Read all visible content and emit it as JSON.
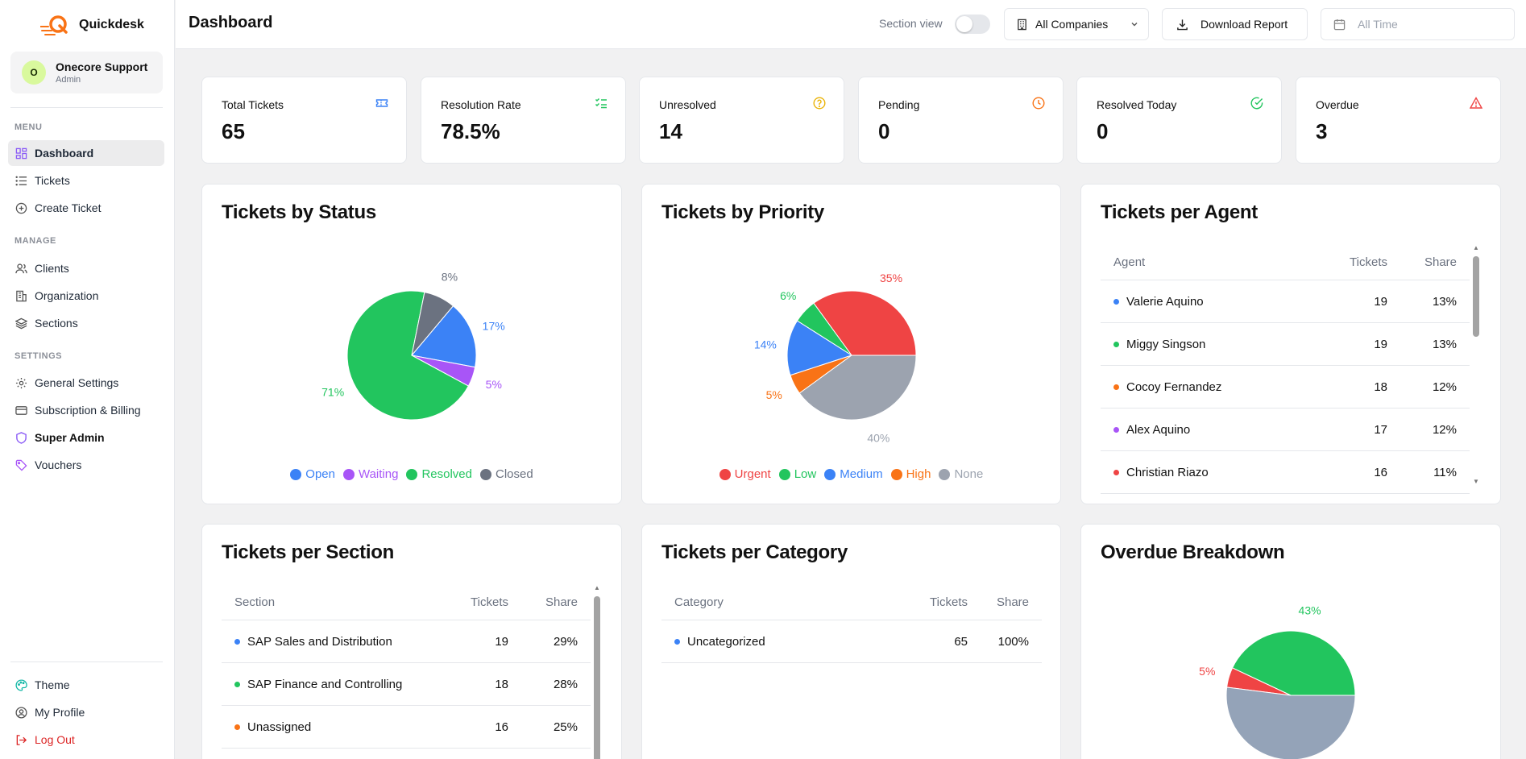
{
  "app": {
    "name": "Quickdesk"
  },
  "account": {
    "initial": "O",
    "name": "Onecore Support",
    "role": "Admin"
  },
  "sidebar": {
    "menu_heading": "MENU",
    "menu": [
      {
        "label": "Dashboard",
        "icon": "dashboard-icon"
      },
      {
        "label": "Tickets",
        "icon": "list-icon"
      },
      {
        "label": "Create Ticket",
        "icon": "plus-circle-icon"
      }
    ],
    "manage_heading": "MANAGE",
    "manage": [
      {
        "label": "Clients",
        "icon": "users-icon"
      },
      {
        "label": "Organization",
        "icon": "building-icon"
      },
      {
        "label": "Sections",
        "icon": "layers-icon"
      }
    ],
    "settings_heading": "SETTINGS",
    "settings": [
      {
        "label": "General Settings",
        "icon": "gear-icon"
      },
      {
        "label": "Subscription & Billing",
        "icon": "credit-card-icon"
      },
      {
        "label": "Super Admin",
        "icon": "shield-icon"
      },
      {
        "label": "Vouchers",
        "icon": "tag-icon"
      }
    ],
    "footer": [
      {
        "label": "Theme",
        "icon": "palette-icon"
      },
      {
        "label": "My Profile",
        "icon": "user-circle-icon"
      },
      {
        "label": "Log Out",
        "icon": "logout-icon"
      }
    ]
  },
  "header": {
    "title": "Dashboard",
    "section_view_label": "Section view",
    "section_view_on": false,
    "company_select": "All Companies",
    "download_label": "Download Report",
    "date_placeholder": "All Time"
  },
  "stats": [
    {
      "label": "Total Tickets",
      "value": "65",
      "icon": "ticket-icon",
      "color": "#3b82f6"
    },
    {
      "label": "Resolution Rate",
      "value": "78.5%",
      "icon": "list-checks-icon",
      "color": "#22c55e"
    },
    {
      "label": "Unresolved",
      "value": "14",
      "icon": "help-circle-icon",
      "color": "#eab308"
    },
    {
      "label": "Pending",
      "value": "0",
      "icon": "clock-icon",
      "color": "#f97316"
    },
    {
      "label": "Resolved Today",
      "value": "0",
      "icon": "check-circle-icon",
      "color": "#22c55e"
    },
    {
      "label": "Overdue",
      "value": "3",
      "icon": "alert-triangle-icon",
      "color": "#ef4444"
    }
  ],
  "panels": {
    "status_title": "Tickets by Status",
    "priority_title": "Tickets by Priority",
    "agent_title": "Tickets per Agent",
    "section_title": "Tickets per Section",
    "category_title": "Tickets per Category",
    "overdue_title": "Overdue Breakdown"
  },
  "chart_data": [
    {
      "type": "pie",
      "title": "Tickets by Status",
      "slices": [
        {
          "label": "Open",
          "percent": 17,
          "color": "#3b82f6"
        },
        {
          "label": "Waiting",
          "percent": 5,
          "color": "#a855f7"
        },
        {
          "label": "Resolved",
          "percent": 71,
          "color": "#22c55e"
        },
        {
          "label": "Closed",
          "percent": 8,
          "color": "#6b7280"
        }
      ]
    },
    {
      "type": "pie",
      "title": "Tickets by Priority",
      "slices": [
        {
          "label": "Urgent",
          "percent": 35,
          "color": "#ef4444"
        },
        {
          "label": "Low",
          "percent": 6,
          "color": "#22c55e"
        },
        {
          "label": "Medium",
          "percent": 14,
          "color": "#3b82f6"
        },
        {
          "label": "High",
          "percent": 5,
          "color": "#f97316"
        },
        {
          "label": "None",
          "percent": 40,
          "color": "#9ca3af"
        }
      ]
    },
    {
      "type": "pie",
      "title": "Overdue Breakdown",
      "slices": [
        {
          "label": "",
          "percent": 43,
          "color": "#22c55e"
        },
        {
          "label": "",
          "percent": 5,
          "color": "#ef4444"
        },
        {
          "label": "",
          "percent": 52,
          "color": "#94a3b8"
        }
      ]
    }
  ],
  "agents": {
    "headers": [
      "Agent",
      "Tickets",
      "Share"
    ],
    "rows": [
      {
        "name": "Valerie Aquino",
        "tickets": "19",
        "share": "13%",
        "color": "#3b82f6"
      },
      {
        "name": "Miggy Singson",
        "tickets": "19",
        "share": "13%",
        "color": "#22c55e"
      },
      {
        "name": "Cocoy Fernandez",
        "tickets": "18",
        "share": "12%",
        "color": "#f97316"
      },
      {
        "name": "Alex Aquino",
        "tickets": "17",
        "share": "12%",
        "color": "#a855f7"
      },
      {
        "name": "Christian Riazo",
        "tickets": "16",
        "share": "11%",
        "color": "#ef4444"
      }
    ]
  },
  "sections": {
    "headers": [
      "Section",
      "Tickets",
      "Share"
    ],
    "rows": [
      {
        "name": "SAP Sales and Distribution",
        "tickets": "19",
        "share": "29%",
        "color": "#3b82f6"
      },
      {
        "name": "SAP Finance and Controlling",
        "tickets": "18",
        "share": "28%",
        "color": "#22c55e"
      },
      {
        "name": "Unassigned",
        "tickets": "16",
        "share": "25%",
        "color": "#f97316"
      }
    ]
  },
  "categories": {
    "headers": [
      "Category",
      "Tickets",
      "Share"
    ],
    "rows": [
      {
        "name": "Uncategorized",
        "tickets": "65",
        "share": "100%",
        "color": "#3b82f6"
      }
    ]
  }
}
